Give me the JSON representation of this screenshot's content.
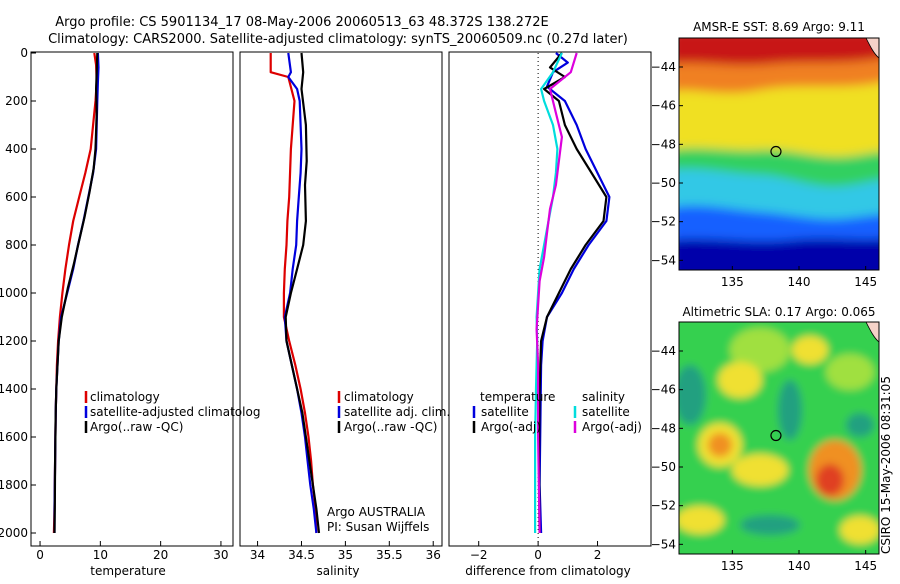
{
  "header": {
    "title_line1": "Argo profile: CS 5901134_17 08-May-2006 20060513_63 48.372S 138.272E",
    "title_line2": "Climatology: CARS2000. Satellite-adjusted climatology: synTS_20060509.nc (0.27d later)"
  },
  "side_caption": "CSIRO 15-May-2006 08:31:05",
  "chart_data": [
    {
      "type": "line",
      "id": "temperature",
      "xlabel": "temperature",
      "xlim": [
        -1.5,
        32
      ],
      "ylim": [
        0,
        2050
      ],
      "yreversed": true,
      "xticks": [
        0,
        10,
        20,
        30
      ],
      "yticks": [
        0,
        200,
        400,
        600,
        800,
        1000,
        1200,
        1400,
        1600,
        1800,
        2000
      ],
      "legend": [
        "climatology",
        "satellite-adjusted climatolog",
        "Argo(..raw -QC)"
      ],
      "series": [
        {
          "color": "#dd0000",
          "points": [
            [
              9.0,
              0
            ],
            [
              9.3,
              50
            ],
            [
              9.4,
              120
            ],
            [
              9.2,
              200
            ],
            [
              8.4,
              400
            ],
            [
              7.5,
              500
            ],
            [
              6.5,
              600
            ],
            [
              5.5,
              700
            ],
            [
              4.8,
              800
            ],
            [
              4.2,
              900
            ],
            [
              3.7,
              1000
            ],
            [
              3.3,
              1100
            ],
            [
              3.0,
              1200
            ],
            [
              2.8,
              1300
            ],
            [
              2.7,
              1400
            ],
            [
              2.6,
              1500
            ],
            [
              2.5,
              1700
            ],
            [
              2.4,
              1900
            ],
            [
              2.3,
              2000
            ]
          ]
        },
        {
          "color": "#0000dd",
          "points": [
            [
              9.6,
              0
            ],
            [
              9.7,
              60
            ],
            [
              9.6,
              120
            ],
            [
              9.5,
              200
            ],
            [
              9.3,
              400
            ],
            [
              8.8,
              500
            ],
            [
              8.0,
              600
            ],
            [
              7.2,
              700
            ],
            [
              6.3,
              800
            ],
            [
              5.5,
              900
            ],
            [
              4.5,
              1000
            ],
            [
              3.5,
              1100
            ],
            [
              3.1,
              1200
            ],
            [
              2.9,
              1300
            ],
            [
              2.7,
              1400
            ],
            [
              2.6,
              1500
            ],
            [
              2.5,
              1700
            ],
            [
              2.4,
              1900
            ],
            [
              2.4,
              2000
            ]
          ]
        },
        {
          "color": "#000000",
          "points": [
            [
              9.5,
              0
            ],
            [
              9.4,
              80
            ],
            [
              9.3,
              150
            ],
            [
              9.4,
              250
            ],
            [
              9.2,
              400
            ],
            [
              8.9,
              480
            ],
            [
              8.2,
              580
            ],
            [
              7.4,
              680
            ],
            [
              6.5,
              780
            ],
            [
              5.6,
              880
            ],
            [
              4.6,
              980
            ],
            [
              3.6,
              1100
            ],
            [
              3.1,
              1200
            ],
            [
              2.9,
              1300
            ],
            [
              2.7,
              1400
            ],
            [
              2.6,
              1500
            ],
            [
              2.5,
              1700
            ],
            [
              2.45,
              1900
            ],
            [
              2.4,
              2000
            ]
          ]
        }
      ]
    },
    {
      "type": "line",
      "id": "salinity",
      "xlabel": "salinity",
      "xlim": [
        33.8,
        36.1
      ],
      "ylim": [
        0,
        2050
      ],
      "yreversed": true,
      "xticks": [
        34,
        34.5,
        35,
        35.5,
        36
      ],
      "legend": [
        "climatology",
        "satellite adj. clim.",
        "Argo(..raw -QC)"
      ],
      "annotation": [
        "Argo AUSTRALIA",
        "PI: Susan Wijffels"
      ],
      "series": [
        {
          "color": "#dd0000",
          "points": [
            [
              34.15,
              0
            ],
            [
              34.15,
              80
            ],
            [
              34.35,
              100
            ],
            [
              34.42,
              200
            ],
            [
              34.38,
              400
            ],
            [
              34.36,
              600
            ],
            [
              34.34,
              700
            ],
            [
              34.33,
              800
            ],
            [
              34.31,
              900
            ],
            [
              34.3,
              1000
            ],
            [
              34.3,
              1100
            ],
            [
              34.36,
              1200
            ],
            [
              34.43,
              1300
            ],
            [
              34.49,
              1400
            ],
            [
              34.54,
              1500
            ],
            [
              34.58,
              1600
            ],
            [
              34.61,
              1700
            ],
            [
              34.63,
              1800
            ],
            [
              34.66,
              1900
            ],
            [
              34.67,
              2000
            ]
          ]
        },
        {
          "color": "#0000dd",
          "points": [
            [
              34.35,
              0
            ],
            [
              34.38,
              80
            ],
            [
              34.35,
              100
            ],
            [
              34.45,
              150
            ],
            [
              34.48,
              200
            ],
            [
              34.5,
              400
            ],
            [
              34.49,
              500
            ],
            [
              34.47,
              600
            ],
            [
              34.45,
              700
            ],
            [
              34.44,
              800
            ],
            [
              34.4,
              900
            ],
            [
              34.37,
              1000
            ],
            [
              34.31,
              1100
            ],
            [
              34.33,
              1200
            ],
            [
              34.39,
              1300
            ],
            [
              34.45,
              1400
            ],
            [
              34.5,
              1500
            ],
            [
              34.54,
              1600
            ],
            [
              34.57,
              1700
            ],
            [
              34.6,
              1800
            ],
            [
              34.64,
              1900
            ],
            [
              34.67,
              2000
            ]
          ]
        },
        {
          "color": "#000000",
          "points": [
            [
              34.5,
              0
            ],
            [
              34.52,
              80
            ],
            [
              34.5,
              150
            ],
            [
              34.55,
              300
            ],
            [
              34.56,
              450
            ],
            [
              34.54,
              550
            ],
            [
              34.55,
              700
            ],
            [
              34.52,
              800
            ],
            [
              34.45,
              900
            ],
            [
              34.38,
              1000
            ],
            [
              34.32,
              1100
            ],
            [
              34.33,
              1200
            ],
            [
              34.39,
              1300
            ],
            [
              34.45,
              1400
            ],
            [
              34.51,
              1500
            ],
            [
              34.55,
              1600
            ],
            [
              34.59,
              1700
            ],
            [
              34.63,
              1800
            ],
            [
              34.67,
              1900
            ],
            [
              34.7,
              2000
            ]
          ]
        }
      ]
    },
    {
      "type": "line",
      "id": "difference",
      "xlabel": "difference from climatology",
      "xlim": [
        -3,
        3.8
      ],
      "ylim": [
        0,
        2050
      ],
      "yreversed": true,
      "xticks": [
        -2,
        0,
        2
      ],
      "legend_left_title": "temperature",
      "legend_left": [
        "satellite",
        "Argo(-adj)"
      ],
      "legend_right_title": "salinity",
      "legend_right": [
        "satellite",
        "Argo(-adj)"
      ],
      "series": [
        {
          "color": "#0000dd",
          "points": [
            [
              0.6,
              0
            ],
            [
              1.0,
              40
            ],
            [
              0.5,
              80
            ],
            [
              0.3,
              140
            ],
            [
              0.9,
              200
            ],
            [
              1.3,
              300
            ],
            [
              1.6,
              400
            ],
            [
              2.0,
              500
            ],
            [
              2.4,
              600
            ],
            [
              2.3,
              700
            ],
            [
              1.7,
              800
            ],
            [
              1.2,
              900
            ],
            [
              0.8,
              1000
            ],
            [
              0.3,
              1100
            ],
            [
              0.15,
              1200
            ],
            [
              0.1,
              1300
            ],
            [
              0.08,
              1500
            ],
            [
              0.05,
              1800
            ],
            [
              0.1,
              2000
            ]
          ]
        },
        {
          "color": "#000000",
          "points": [
            [
              0.8,
              0
            ],
            [
              0.4,
              60
            ],
            [
              0.9,
              100
            ],
            [
              0.2,
              150
            ],
            [
              0.7,
              200
            ],
            [
              0.9,
              300
            ],
            [
              1.3,
              400
            ],
            [
              1.8,
              500
            ],
            [
              2.3,
              600
            ],
            [
              2.2,
              700
            ],
            [
              1.6,
              800
            ],
            [
              1.1,
              900
            ],
            [
              0.7,
              1000
            ],
            [
              0.3,
              1100
            ],
            [
              0.1,
              1200
            ],
            [
              0.05,
              1400
            ],
            [
              0.03,
              1700
            ],
            [
              0.05,
              2000
            ]
          ]
        },
        {
          "color": "#00dddd",
          "points": [
            [
              0.8,
              0
            ],
            [
              0.5,
              80
            ],
            [
              0.1,
              150
            ],
            [
              0.2,
              200
            ],
            [
              0.5,
              300
            ],
            [
              0.65,
              400
            ],
            [
              0.6,
              500
            ],
            [
              0.5,
              600
            ],
            [
              0.35,
              700
            ],
            [
              0.2,
              800
            ],
            [
              0.05,
              900
            ],
            [
              0.0,
              1000
            ],
            [
              -0.05,
              1100
            ],
            [
              -0.03,
              1200
            ],
            [
              -0.07,
              1400
            ],
            [
              -0.1,
              1600
            ],
            [
              -0.1,
              1800
            ],
            [
              -0.1,
              2000
            ]
          ]
        },
        {
          "color": "#dd00dd",
          "points": [
            [
              1.3,
              0
            ],
            [
              1.1,
              80
            ],
            [
              0.4,
              150
            ],
            [
              0.6,
              250
            ],
            [
              0.8,
              350
            ],
            [
              0.7,
              450
            ],
            [
              0.6,
              550
            ],
            [
              0.4,
              650
            ],
            [
              0.3,
              750
            ],
            [
              0.2,
              850
            ],
            [
              0.05,
              950
            ],
            [
              0.0,
              1050
            ],
            [
              -0.05,
              1150
            ],
            [
              0.0,
              1300
            ],
            [
              0.0,
              1600
            ],
            [
              0.05,
              2000
            ]
          ]
        }
      ]
    },
    {
      "type": "heatmap",
      "id": "sst-map",
      "title": "AMSR-E SST: 8.69 Argo: 9.11",
      "xlim": [
        131,
        146
      ],
      "ylim": [
        -54.5,
        -42.5
      ],
      "xticks": [
        135,
        140,
        145
      ],
      "yticks": [
        -44,
        -46,
        -48,
        -50,
        -52,
        -54
      ],
      "marker": [
        138.272,
        -48.372
      ],
      "colors": {
        "deep": "#0000aa",
        "cold": "#1460ff",
        "cyan": "#32c8e6",
        "green": "#30d060",
        "yellow": "#f0e020",
        "orange": "#f08020",
        "red": "#c81414"
      }
    },
    {
      "type": "heatmap",
      "id": "sla-map",
      "title": "Altimetric SLA: 0.17 Argo: 0.065",
      "xlim": [
        131,
        146
      ],
      "ylim": [
        -54.5,
        -42.5
      ],
      "xticks": [
        135,
        140,
        145
      ],
      "yticks": [
        -44,
        -46,
        -48,
        -50,
        -52,
        -54
      ],
      "marker": [
        138.272,
        -48.372
      ],
      "colors": {
        "teal": "#20a080",
        "green": "#34d050",
        "light": "#a0e040",
        "yellow": "#f0e030",
        "orange": "#f09020",
        "red": "#e04020"
      }
    }
  ]
}
